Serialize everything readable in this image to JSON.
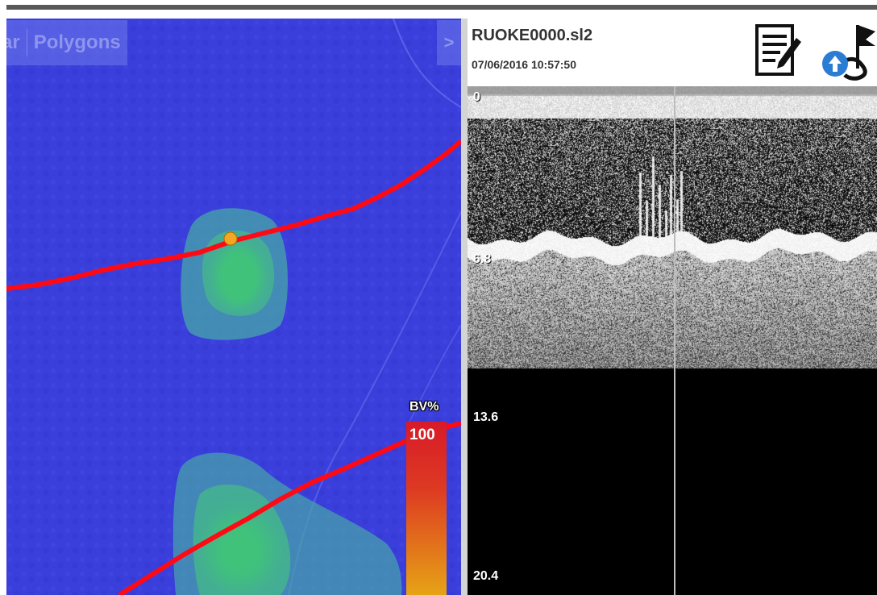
{
  "map": {
    "tabs": [
      "ar",
      "Polygons"
    ],
    "scroll_arrow": ">",
    "legend": {
      "label": "BV%",
      "max": "100"
    },
    "colors": {
      "background": "#3a3fdc",
      "track": "#ff0a14",
      "blob": "#3fc27a",
      "position_marker": "#f5a623"
    }
  },
  "sonar": {
    "file_name": "RUOKE0000.sl2",
    "datetime": "07/06/2016 10:57:50",
    "icons": [
      "notes-icon",
      "flag-upload-icon"
    ],
    "depths": [
      "0",
      "6.8",
      "13.6",
      "20.4"
    ]
  }
}
